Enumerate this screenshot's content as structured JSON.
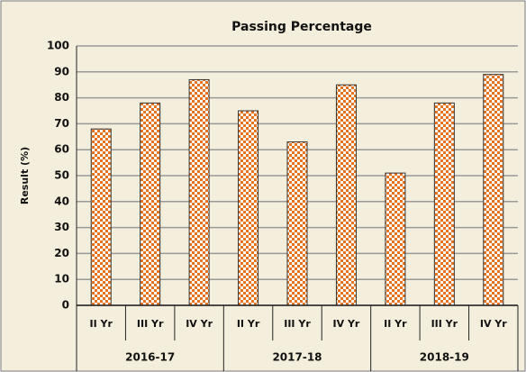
{
  "chart_data": {
    "type": "bar",
    "title": "Passing Percentage",
    "y_label": "Result (%)",
    "groups": [
      {
        "name": "2016-17",
        "categories": [
          "II Yr",
          "III Yr",
          "IV Yr"
        ],
        "values": [
          68,
          78,
          87
        ]
      },
      {
        "name": "2017-18",
        "categories": [
          "II Yr",
          "III Yr",
          "IV Yr"
        ],
        "values": [
          75,
          63,
          85
        ]
      },
      {
        "name": "2018-19",
        "categories": [
          "II Yr",
          "III Yr",
          "IV Yr"
        ],
        "values": [
          51,
          78,
          89
        ]
      }
    ],
    "color": "#e8731e",
    "ylim": [
      0,
      100
    ],
    "yticks": [
      0,
      10,
      20,
      30,
      40,
      50,
      60,
      70,
      80,
      90,
      100
    ],
    "grid": true
  }
}
